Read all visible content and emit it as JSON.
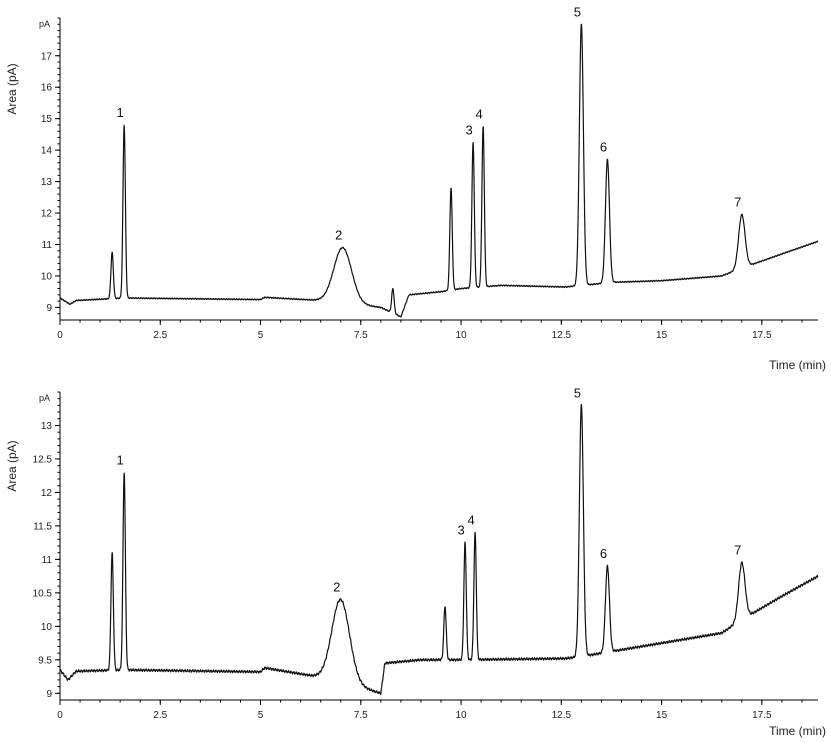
{
  "chart_data": [
    {
      "type": "line",
      "unit_label": "pA",
      "ylabel": "Area (pA)",
      "xlabel": "Time (min)",
      "xlim": [
        0,
        18.9
      ],
      "ylim": [
        8.6,
        18.2
      ],
      "x_ticks": [
        0,
        2.5,
        5,
        7.5,
        10,
        12.5,
        15,
        17.5
      ],
      "x_tick_labels": [
        "0",
        "2.5",
        "5",
        "7.5",
        "10",
        "12.5",
        "15",
        "17.5"
      ],
      "y_ticks": [
        9,
        10,
        11,
        12,
        13,
        14,
        15,
        16,
        17
      ],
      "y_tick_labels": [
        "9",
        "10",
        "11",
        "12",
        "13",
        "14",
        "15",
        "16",
        "17"
      ],
      "grid": false,
      "baseline": [
        [
          0,
          9.3
        ],
        [
          0.25,
          9.1
        ],
        [
          0.4,
          9.22
        ],
        [
          1.6,
          9.3
        ],
        [
          5.0,
          9.25
        ],
        [
          5.1,
          9.32
        ],
        [
          6.8,
          9.2
        ],
        [
          8.0,
          9.0
        ],
        [
          8.5,
          8.7
        ],
        [
          8.7,
          9.4
        ],
        [
          9.5,
          9.5
        ],
        [
          10.0,
          9.6
        ],
        [
          11.0,
          9.7
        ],
        [
          12.6,
          9.65
        ],
        [
          13.0,
          9.7
        ],
        [
          13.8,
          9.8
        ],
        [
          15.0,
          9.85
        ],
        [
          16.5,
          10.0
        ],
        [
          17.0,
          10.25
        ],
        [
          18.0,
          10.7
        ],
        [
          18.9,
          11.1
        ]
      ],
      "peaks": [
        {
          "label": "",
          "t": 1.3,
          "height": 10.75,
          "width": 0.03
        },
        {
          "label": "1",
          "t": 1.6,
          "height": 14.8,
          "width": 0.03
        },
        {
          "label": "2",
          "t": 7.05,
          "height": 10.9,
          "width": 0.22
        },
        {
          "label": "",
          "t": 8.3,
          "height": 9.6,
          "width": 0.03
        },
        {
          "label": "",
          "t": 9.75,
          "height": 12.8,
          "width": 0.03
        },
        {
          "label": "3",
          "t": 10.3,
          "height": 14.25,
          "width": 0.03
        },
        {
          "label": "4",
          "t": 10.55,
          "height": 14.75,
          "width": 0.03
        },
        {
          "label": "5",
          "t": 13.0,
          "height": 18.0,
          "width": 0.05
        },
        {
          "label": "6",
          "t": 13.65,
          "height": 13.7,
          "width": 0.05
        },
        {
          "label": "7",
          "t": 17.0,
          "height": 11.95,
          "width": 0.08
        }
      ]
    },
    {
      "type": "line",
      "unit_label": "pA",
      "ylabel": "Area (pA)",
      "xlabel": "Time (min)",
      "xlim": [
        0,
        18.9
      ],
      "ylim": [
        8.9,
        13.5
      ],
      "x_ticks": [
        0,
        2.5,
        5,
        7.5,
        10,
        12.5,
        15,
        17.5
      ],
      "x_tick_labels": [
        "0",
        "2.5",
        "5",
        "7.5",
        "10",
        "12.5",
        "15",
        "17.5"
      ],
      "y_ticks": [
        9,
        9.5,
        10,
        10.5,
        11,
        11.5,
        12,
        12.5,
        13
      ],
      "y_tick_labels": [
        "9",
        "9.5",
        "10",
        "10.5",
        "11",
        "11.5",
        "12",
        "12.5",
        "13"
      ],
      "grid": false,
      "baseline": [
        [
          0,
          9.35
        ],
        [
          0.2,
          9.2
        ],
        [
          0.4,
          9.33
        ],
        [
          1.6,
          9.35
        ],
        [
          5.0,
          9.32
        ],
        [
          5.1,
          9.38
        ],
        [
          6.9,
          9.2
        ],
        [
          8.0,
          9.0
        ],
        [
          8.1,
          9.45
        ],
        [
          9.0,
          9.5
        ],
        [
          10.0,
          9.5
        ],
        [
          12.6,
          9.52
        ],
        [
          13.0,
          9.55
        ],
        [
          14.0,
          9.65
        ],
        [
          15.0,
          9.75
        ],
        [
          16.5,
          9.9
        ],
        [
          17.0,
          10.1
        ],
        [
          18.0,
          10.45
        ],
        [
          18.9,
          10.75
        ]
      ],
      "peaks": [
        {
          "label": "",
          "t": 1.3,
          "height": 11.1,
          "width": 0.03
        },
        {
          "label": "1",
          "t": 1.6,
          "height": 12.3,
          "width": 0.03
        },
        {
          "label": "2",
          "t": 7.0,
          "height": 10.4,
          "width": 0.22
        },
        {
          "label": "",
          "t": 9.6,
          "height": 10.3,
          "width": 0.03
        },
        {
          "label": "3",
          "t": 10.1,
          "height": 11.25,
          "width": 0.03
        },
        {
          "label": "4",
          "t": 10.35,
          "height": 11.4,
          "width": 0.03
        },
        {
          "label": "5",
          "t": 13.0,
          "height": 13.3,
          "width": 0.05
        },
        {
          "label": "6",
          "t": 13.65,
          "height": 10.9,
          "width": 0.05
        },
        {
          "label": "7",
          "t": 17.0,
          "height": 10.95,
          "width": 0.08
        }
      ]
    }
  ]
}
